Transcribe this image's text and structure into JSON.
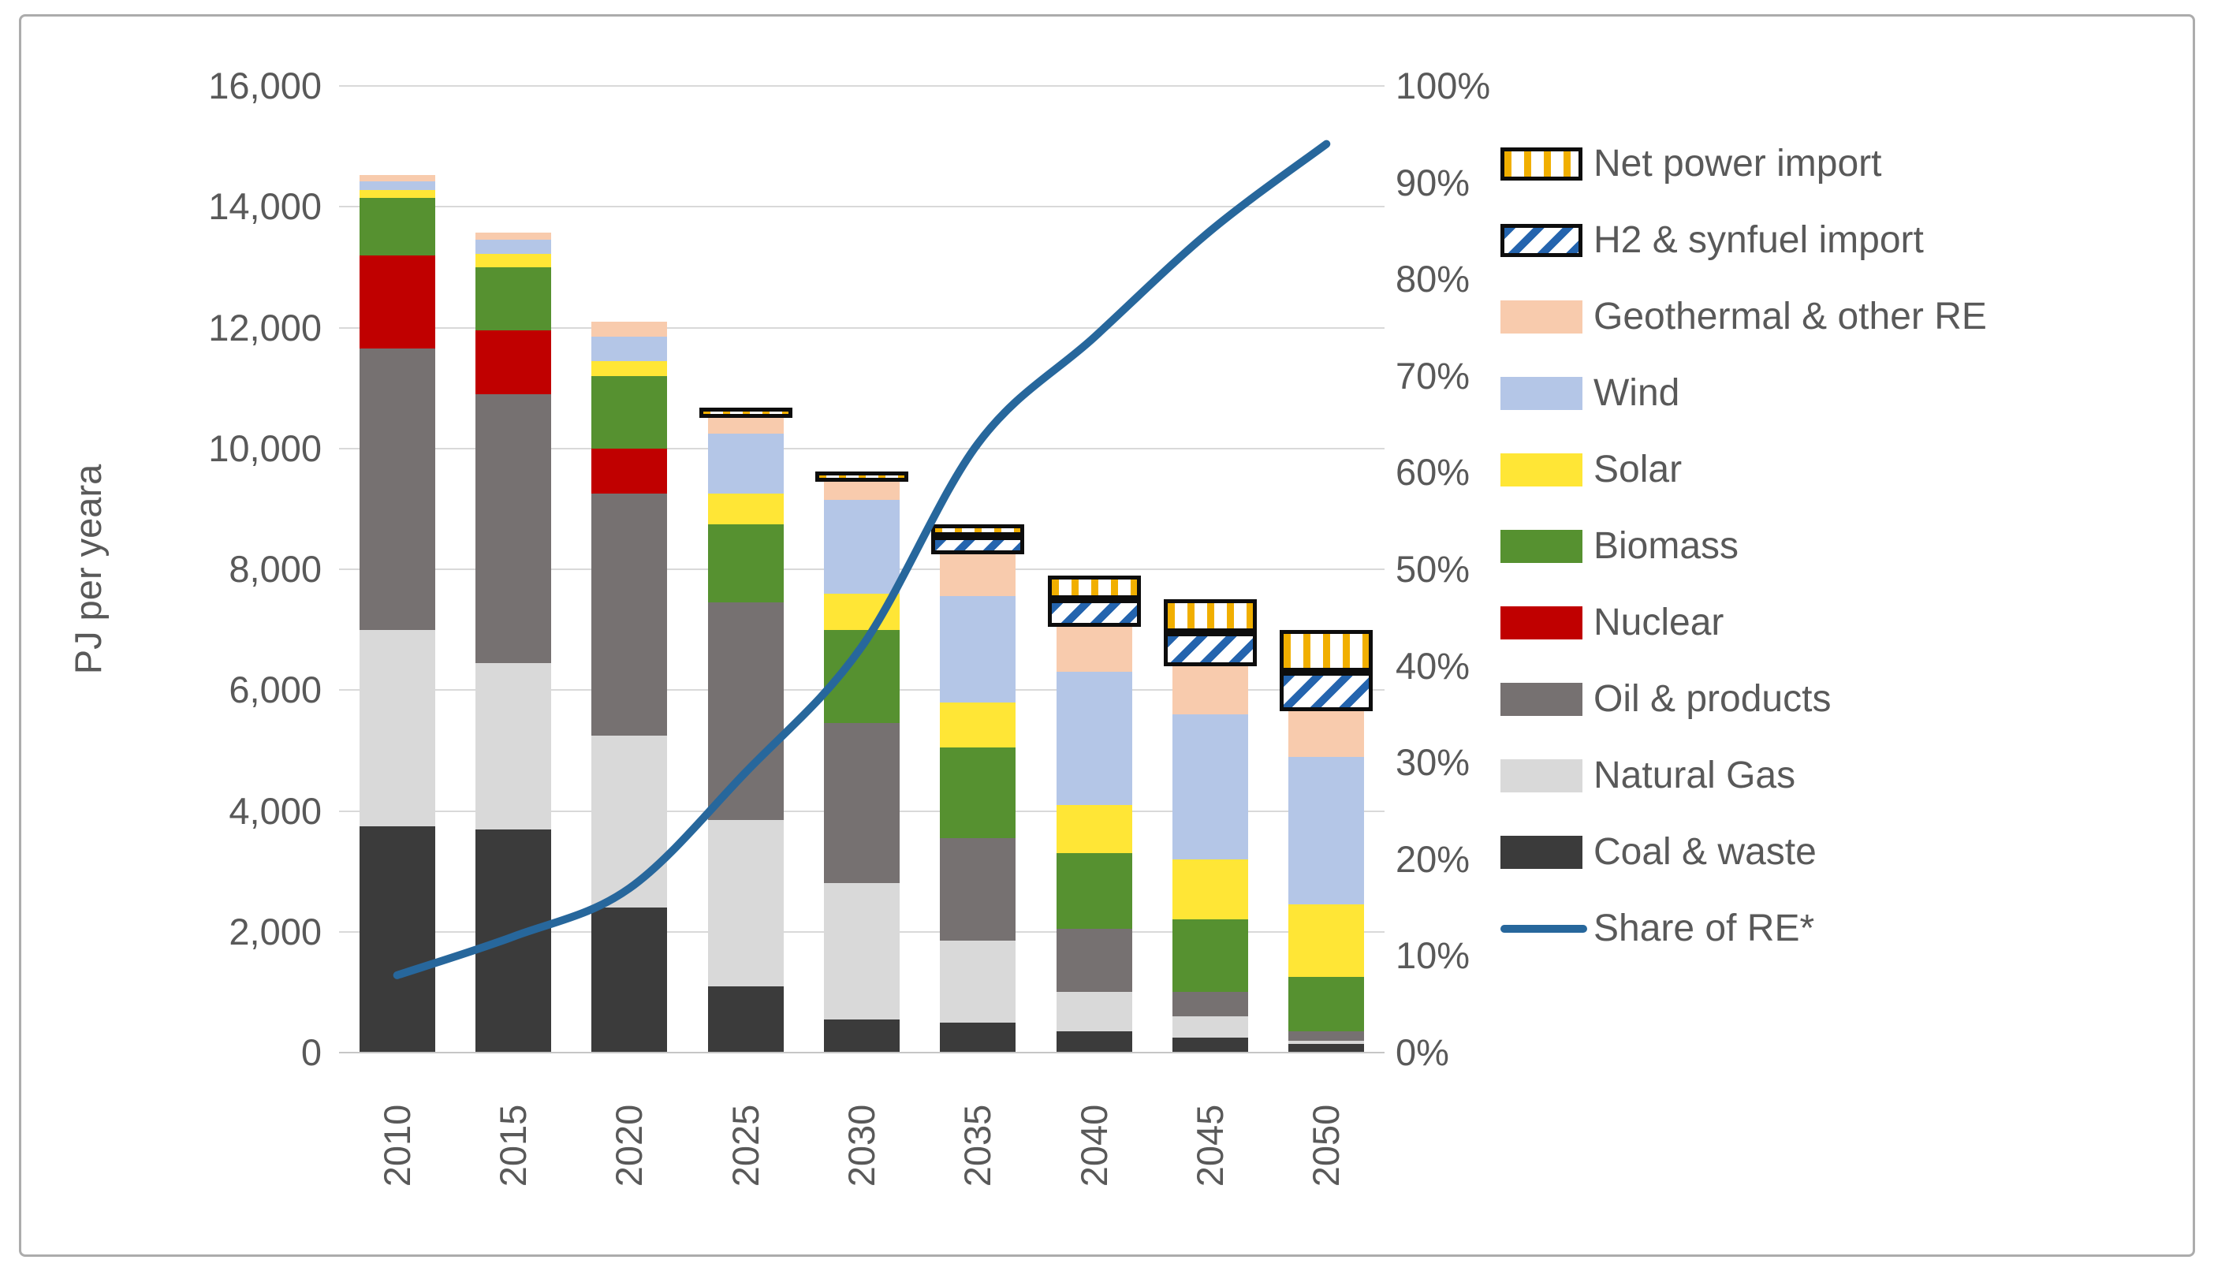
{
  "colors": {
    "text": "#595959",
    "grid": "#D9D9D9",
    "frame_border": "#ACACAC",
    "pattern_border": "#0D0D0D",
    "pattern_bg": "#FFFFFF",
    "net_stripe": "#F1AF00",
    "h2_stripe": "#2464AE",
    "line": "#27679C"
  },
  "chart_data": {
    "type": "bar+line",
    "subtype": "stacked-column with secondary-axis line",
    "title": "",
    "ylabel": "PJ per yeara",
    "categories": [
      "2010",
      "2015",
      "2020",
      "2025",
      "2030",
      "2035",
      "2040",
      "2045",
      "2050"
    ],
    "series": [
      {
        "name": "Coal & waste",
        "color": "#3B3B3B",
        "values": [
          3750,
          3700,
          2400,
          1100,
          550,
          500,
          350,
          250,
          150
        ]
      },
      {
        "name": "Natural Gas",
        "color": "#D9D9D9",
        "values": [
          3250,
          2750,
          2850,
          2750,
          2250,
          1350,
          650,
          350,
          50
        ]
      },
      {
        "name": "Oil & products",
        "color": "#767171",
        "values": [
          4650,
          4450,
          4000,
          3600,
          2650,
          1700,
          1050,
          400,
          150
        ]
      },
      {
        "name": "Nuclear",
        "color": "#C00000",
        "values": [
          1550,
          1050,
          750,
          0,
          0,
          0,
          0,
          0,
          0
        ]
      },
      {
        "name": "Biomass",
        "color": "#569130",
        "values": [
          950,
          1050,
          1200,
          1300,
          1550,
          1500,
          1250,
          1200,
          900
        ]
      },
      {
        "name": "Solar",
        "color": "#FFE636",
        "values": [
          130,
          220,
          250,
          500,
          600,
          750,
          800,
          1000,
          1200
        ]
      },
      {
        "name": "Wind",
        "color": "#B4C6E7",
        "values": [
          140,
          240,
          400,
          1000,
          1550,
          1750,
          2200,
          2400,
          2450
        ]
      },
      {
        "name": "Geothermal & other RE",
        "color": "#F8CBAD",
        "values": [
          110,
          110,
          250,
          250,
          300,
          700,
          750,
          800,
          750
        ]
      },
      {
        "name": "H2 & synfuel import",
        "pattern": "h2",
        "values": [
          0,
          0,
          0,
          0,
          0,
          300,
          450,
          550,
          650
        ]
      },
      {
        "name": "Net power import",
        "pattern": "net",
        "values": [
          0,
          0,
          0,
          100,
          150,
          200,
          400,
          550,
          700
        ]
      }
    ],
    "line_series": {
      "name": "Share of RE*",
      "color": "#27679C",
      "values_percent": [
        8,
        12,
        17,
        29,
        42,
        63,
        74,
        85,
        94
      ]
    },
    "axis_left": {
      "min": 0,
      "max": 16000,
      "step": 2000,
      "ticks": [
        "16,000",
        "14,000",
        "12,000",
        "10,000",
        "8,000",
        "6,000",
        "4,000",
        "2,000",
        "0"
      ]
    },
    "axis_right": {
      "min_label": "0%",
      "max_label": "100%",
      "step_percent": 10,
      "ticks": [
        "100%",
        "90%",
        "80%",
        "70%",
        "60%",
        "50%",
        "40%",
        "30%",
        "20%",
        "10%",
        "0%"
      ]
    },
    "grid": true,
    "legend_position": "right",
    "legend_order": [
      "Net power import",
      "H2 & synfuel import",
      "Geothermal & other RE",
      "Wind",
      "Solar",
      "Biomass",
      "Nuclear",
      "Oil & products",
      "Natural Gas",
      "Coal & waste",
      "Share of RE*"
    ]
  }
}
